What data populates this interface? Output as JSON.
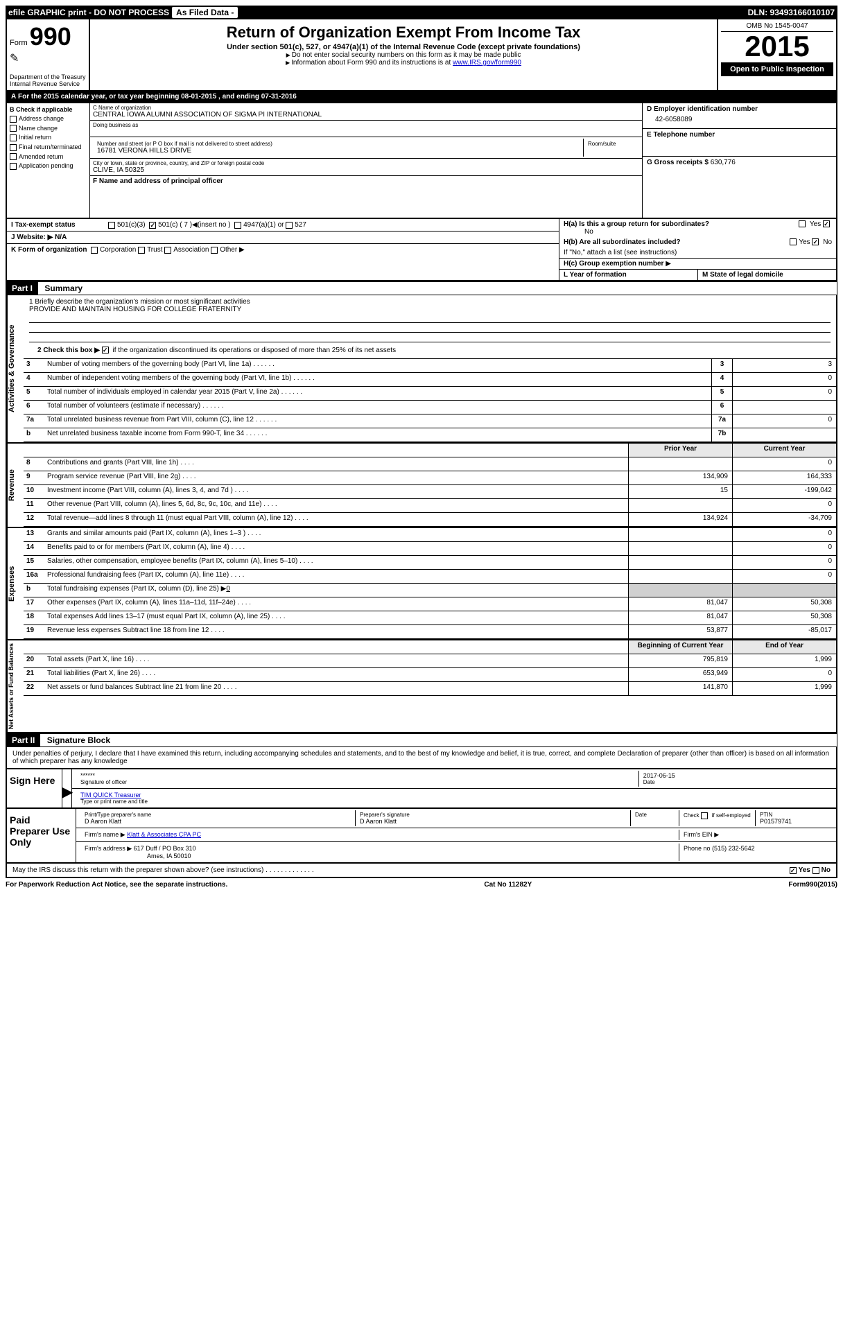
{
  "topbar": {
    "efile": "efile GRAPHIC print - DO NOT PROCESS",
    "asfiled": "As Filed Data -",
    "dln": "DLN: 93493166010107"
  },
  "header": {
    "form_prefix": "Form",
    "form_num": "990",
    "dept": "Department of the Treasury",
    "irs": "Internal Revenue Service",
    "title": "Return of Organization Exempt From Income Tax",
    "sub1": "Under section 501(c), 527, or 4947(a)(1) of the Internal Revenue Code (except private foundations)",
    "sub2": "Do not enter social security numbers on this form as it may be made public",
    "sub3_pre": "Information about Form 990 and its instructions is at ",
    "sub3_link": "www.IRS.gov/form990",
    "omb": "OMB No 1545-0047",
    "year": "2015",
    "open": "Open to Public Inspection"
  },
  "a_line": {
    "prefix": "A",
    "text": "For the 2015 calendar year, or tax year beginning 08-01-2015",
    "mid": ", and ending 07-31-2016"
  },
  "checkboxes": {
    "b_label": "B Check if applicable",
    "address": "Address change",
    "name": "Name change",
    "initial": "Initial return",
    "final": "Final return/terminated",
    "amended": "Amended return",
    "app": "Application pending"
  },
  "org": {
    "c_label": "C Name of organization",
    "name": "CENTRAL IOWA ALUMNI ASSOCIATION OF SIGMA PI INTERNATIONAL",
    "dba_label": "Doing business as",
    "addr_label": "Number and street (or P O  box if mail is not delivered to street address)",
    "room_label": "Room/suite",
    "addr": "16781 VERONA HILLS DRIVE",
    "city_label": "City or town, state or province, country, and ZIP or foreign postal code",
    "city": "CLIVE, IA  50325",
    "f_label": "F Name and address of principal officer"
  },
  "right_info": {
    "d_label": "D Employer identification number",
    "ein": "42-6058089",
    "e_label": "E Telephone number",
    "g_label": "G Gross receipts $",
    "g_val": "630,776"
  },
  "h_section": {
    "ha": "H(a)  Is this a group return for subordinates?",
    "ha_no": "No",
    "hb": "H(b)  Are all subordinates included?",
    "hb_note": "If \"No,\" attach a list  (see instructions)",
    "hc": "H(c)   Group exemption number"
  },
  "i_line": {
    "label": "I  Tax-exempt status",
    "c3": "501(c)(3)",
    "c": "501(c) ( 7 )",
    "insert": "(insert no )",
    "a4947": "4947(a)(1) or",
    "s527": "527"
  },
  "j_line": "J  Website: ▶  N/A",
  "k_line": {
    "label": "K Form of organization",
    "corp": "Corporation",
    "trust": "Trust",
    "assoc": "Association",
    "other": "Other ▶"
  },
  "lm": {
    "l": "L Year of formation",
    "m": "M State of legal domicile"
  },
  "part1": {
    "header": "Part I",
    "title": "Summary",
    "q1": "1 Briefly describe the organization's mission or most significant activities",
    "mission": "PROVIDE AND MAINTAIN HOUSING FOR COLLEGE FRATERNITY",
    "q2": "2 Check this box ▶",
    "q2b": "if the organization discontinued its operations or disposed of more than 25% of its net assets",
    "rows": [
      {
        "n": "3",
        "d": "Number of voting members of the governing body (Part VI, line 1a)",
        "ln": "3",
        "v": "3"
      },
      {
        "n": "4",
        "d": "Number of independent voting members of the governing body (Part VI, line 1b)",
        "ln": "4",
        "v": "0"
      },
      {
        "n": "5",
        "d": "Total number of individuals employed in calendar year 2015 (Part V, line 2a)",
        "ln": "5",
        "v": "0"
      },
      {
        "n": "6",
        "d": "Total number of volunteers (estimate if necessary)",
        "ln": "6",
        "v": ""
      },
      {
        "n": "7a",
        "d": "Total unrelated business revenue from Part VIII, column (C), line 12",
        "ln": "7a",
        "v": "0"
      },
      {
        "n": "b",
        "d": "Net unrelated business taxable income from Form 990-T, line 34",
        "ln": "7b",
        "v": ""
      }
    ],
    "col_prior": "Prior Year",
    "col_curr": "Current Year"
  },
  "revenue": {
    "label": "Revenue",
    "rows": [
      {
        "n": "8",
        "d": "Contributions and grants (Part VIII, line 1h)",
        "p": "",
        "c": "0"
      },
      {
        "n": "9",
        "d": "Program service revenue (Part VIII, line 2g)",
        "p": "134,909",
        "c": "164,333"
      },
      {
        "n": "10",
        "d": "Investment income (Part VIII, column (A), lines 3, 4, and 7d )",
        "p": "15",
        "c": "-199,042"
      },
      {
        "n": "11",
        "d": "Other revenue (Part VIII, column (A), lines 5, 6d, 8c, 9c, 10c, and 11e)",
        "p": "",
        "c": "0"
      },
      {
        "n": "12",
        "d": "Total revenue—add lines 8 through 11 (must equal Part VIII, column (A), line 12)",
        "p": "134,924",
        "c": "-34,709"
      }
    ]
  },
  "expenses": {
    "label": "Expenses",
    "rows": [
      {
        "n": "13",
        "d": "Grants and similar amounts paid (Part IX, column (A), lines 1–3 )",
        "p": "",
        "c": "0"
      },
      {
        "n": "14",
        "d": "Benefits paid to or for members (Part IX, column (A), line 4)",
        "p": "",
        "c": "0"
      },
      {
        "n": "15",
        "d": "Salaries, other compensation, employee benefits (Part IX, column (A), lines 5–10)",
        "p": "",
        "c": "0"
      },
      {
        "n": "16a",
        "d": "Professional fundraising fees (Part IX, column (A), line 11e)",
        "p": "",
        "c": "0"
      },
      {
        "n": "b",
        "d": "Total fundraising expenses (Part IX, column (D), line 25) ▶",
        "p": null,
        "c": null,
        "underline": "0"
      },
      {
        "n": "17",
        "d": "Other expenses (Part IX, column (A), lines 11a–11d, 11f–24e)",
        "p": "81,047",
        "c": "50,308"
      },
      {
        "n": "18",
        "d": "Total expenses  Add lines 13–17 (must equal Part IX, column (A), line 25)",
        "p": "81,047",
        "c": "50,308"
      },
      {
        "n": "19",
        "d": "Revenue less expenses  Subtract line 18 from line 12",
        "p": "53,877",
        "c": "-85,017"
      }
    ]
  },
  "netassets": {
    "label": "Net Assets or Fund Balances",
    "col_begin": "Beginning of Current Year",
    "col_end": "End of Year",
    "rows": [
      {
        "n": "20",
        "d": "Total assets (Part X, line 16)",
        "p": "795,819",
        "c": "1,999"
      },
      {
        "n": "21",
        "d": "Total liabilities (Part X, line 26)",
        "p": "653,949",
        "c": "0"
      },
      {
        "n": "22",
        "d": "Net assets or fund balances  Subtract line 21 from line 20",
        "p": "141,870",
        "c": "1,999"
      }
    ]
  },
  "part2": {
    "header": "Part II",
    "title": "Signature Block",
    "perjury": "Under penalties of perjury, I declare that I have examined this return, including accompanying schedules and statements, and to the best of my knowledge and belief, it is true, correct, and complete  Declaration of preparer (other than officer) is based on all information of which preparer has any knowledge"
  },
  "sign": {
    "label": "Sign Here",
    "stars": "******",
    "sig_officer": "Signature of officer",
    "date": "2017-06-15",
    "date_label": "Date",
    "name": "TIM QUICK Treasurer",
    "name_label": "Type or print name and title"
  },
  "paid": {
    "label": "Paid Preparer Use Only",
    "print_label": "Print/Type preparer's name",
    "print_name": "D Aaron Klatt",
    "sig_label": "Preparer's signature",
    "sig_name": "D Aaron Klatt",
    "date_label": "Date",
    "check_label": "Check",
    "self_emp": "if self-employed",
    "ptin_label": "PTIN",
    "ptin": "P01579741",
    "firm_name_label": "Firm's name     ▶",
    "firm_name": "Klatt & Associates CPA PC",
    "firm_ein_label": "Firm's EIN ▶",
    "firm_addr_label": "Firm's address ▶",
    "firm_addr": "617 Duff / PO Box 310",
    "firm_city": "Ames, IA  50010",
    "phone_label": "Phone no",
    "phone": "(515) 232-5642"
  },
  "discuss": {
    "q": "May the IRS discuss this return with the preparer shown above? (see instructions)",
    "yes": "Yes",
    "no": "No"
  },
  "footer": {
    "left": "For Paperwork Reduction Act Notice, see the separate instructions.",
    "mid": "Cat  No  11282Y",
    "right": "Form 990 (2015)"
  }
}
